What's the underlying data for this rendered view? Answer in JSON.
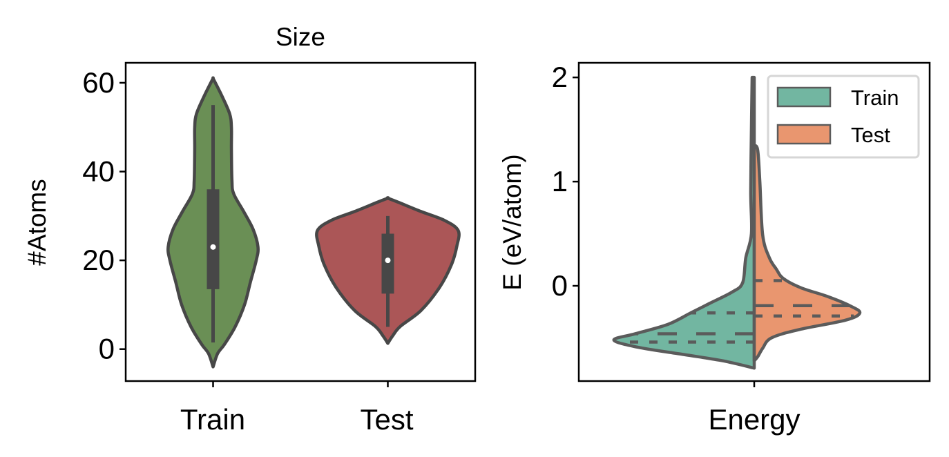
{
  "chart_data": [
    {
      "type": "violin",
      "title": "Size",
      "xlabel": "",
      "ylabel": "#Atoms",
      "categories": [
        "Train",
        "Test"
      ],
      "ylim": [
        -7.2,
        64.5
      ],
      "yticks": [
        0,
        20,
        40,
        60
      ],
      "grid": false,
      "colors": {
        "Train": "#6a8f55",
        "Test": "#ab5657",
        "edge": "#474747"
      },
      "width_unit": "category units (half-width)",
      "violins": [
        {
          "category": "Train",
          "profile": [
            [
              -4,
              0
            ],
            [
              -1,
              0.026
            ],
            [
              1,
              0.064
            ],
            [
              5,
              0.126
            ],
            [
              10,
              0.18
            ],
            [
              15,
              0.213
            ],
            [
              20,
              0.247
            ],
            [
              23,
              0.257
            ],
            [
              27,
              0.229
            ],
            [
              31,
              0.175
            ],
            [
              35,
              0.118
            ],
            [
              38,
              0.108
            ],
            [
              45,
              0.105
            ],
            [
              50,
              0.105
            ],
            [
              53,
              0.095
            ],
            [
              57,
              0.051
            ],
            [
              60,
              0.013
            ],
            [
              61,
              0
            ]
          ],
          "box": {
            "whisker_low": 1.5,
            "q1": 13.5,
            "median": 23,
            "q3": 36,
            "whisker_high": 55
          }
        },
        {
          "category": "Test",
          "profile": [
            [
              1.3,
              0
            ],
            [
              3,
              0.028
            ],
            [
              5.1,
              0.071
            ],
            [
              8.7,
              0.19
            ],
            [
              13.9,
              0.296
            ],
            [
              19,
              0.364
            ],
            [
              23.2,
              0.395
            ],
            [
              26.7,
              0.403
            ],
            [
              29,
              0.324
            ],
            [
              31,
              0.19
            ],
            [
              33.1,
              0.059
            ],
            [
              34,
              0
            ]
          ],
          "box": {
            "whisker_low": 5,
            "q1": 12.5,
            "median": 20,
            "q3": 26,
            "whisker_high": 30
          }
        }
      ]
    },
    {
      "type": "split-violin",
      "title": "",
      "xlabel": "",
      "ylabel": "E (eV/atom)",
      "categories": [
        "Energy"
      ],
      "ylim": [
        -0.914,
        2.14
      ],
      "yticks": [
        0,
        1,
        2
      ],
      "grid": false,
      "legend": {
        "placement": "top-right",
        "entries": [
          "Train",
          "Test"
        ]
      },
      "colors": {
        "Train": "#72b6a1",
        "Test": "#e9966f",
        "edge": "#5b5b5b"
      },
      "width_unit": "category units (half-width)",
      "halves": [
        {
          "name": "Train",
          "side": "left",
          "profile": [
            [
              -0.79,
              0
            ],
            [
              -0.72,
              0.089
            ],
            [
              -0.66,
              0.2
            ],
            [
              -0.59,
              0.331
            ],
            [
              -0.52,
              0.4
            ],
            [
              -0.46,
              0.339
            ],
            [
              -0.37,
              0.246
            ],
            [
              -0.26,
              0.181
            ],
            [
              -0.17,
              0.128
            ],
            [
              -0.06,
              0.063
            ],
            [
              0.03,
              0.033
            ],
            [
              0.27,
              0.024
            ],
            [
              0.5,
              0.008
            ],
            [
              0.9,
              0.01
            ],
            [
              1.5,
              0.008
            ],
            [
              2.0,
              0.006
            ]
          ],
          "quartiles": {
            "q1": -0.54,
            "median": -0.46,
            "q3": -0.26
          }
        },
        {
          "name": "Test",
          "side": "right",
          "profile": [
            [
              -0.72,
              0
            ],
            [
              -0.68,
              0.01
            ],
            [
              -0.6,
              0.024
            ],
            [
              -0.5,
              0.049
            ],
            [
              -0.42,
              0.128
            ],
            [
              -0.33,
              0.26
            ],
            [
              -0.26,
              0.301
            ],
            [
              -0.19,
              0.272
            ],
            [
              -0.1,
              0.207
            ],
            [
              -0.02,
              0.134
            ],
            [
              0.07,
              0.083
            ],
            [
              0.16,
              0.063
            ],
            [
              0.27,
              0.043
            ],
            [
              0.49,
              0.024
            ],
            [
              1.0,
              0.016
            ],
            [
              1.3,
              0.01
            ],
            [
              1.35,
              0
            ]
          ],
          "quartiles": {
            "q1": -0.29,
            "median": -0.19,
            "q3": 0.05
          }
        }
      ]
    }
  ]
}
